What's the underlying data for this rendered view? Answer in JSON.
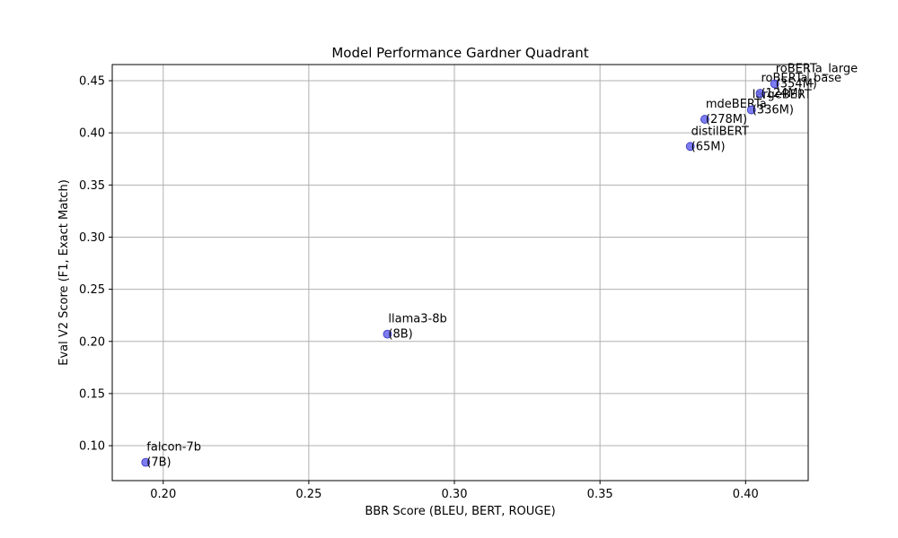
{
  "chart_data": {
    "type": "scatter",
    "title": "Model Performance Gardner Quadrant",
    "xlabel": "BBR Score (BLEU, BERT, ROUGE)",
    "ylabel": "Eval V2 Score (F1, Exact Match)",
    "xlim": [
      0.1825,
      0.4215
    ],
    "ylim": [
      0.0665,
      0.4655
    ],
    "xticks": [
      0.2,
      0.25,
      0.3,
      0.35,
      0.4
    ],
    "xtick_labels": [
      "0.20",
      "0.25",
      "0.30",
      "0.35",
      "0.40"
    ],
    "yticks": [
      0.1,
      0.15,
      0.2,
      0.25,
      0.3,
      0.35,
      0.4,
      0.45
    ],
    "ytick_labels": [
      "0.10",
      "0.15",
      "0.20",
      "0.25",
      "0.30",
      "0.35",
      "0.40",
      "0.45"
    ],
    "grid": true,
    "point_color": "#6666ee",
    "point_edge": "#3333bb",
    "points": [
      {
        "line1": "falcon-7b",
        "line2": "(7B)",
        "x": 0.194,
        "y": 0.084
      },
      {
        "line1": "llama3-8b",
        "line2": "(8B)",
        "x": 0.277,
        "y": 0.207
      },
      {
        "line1": "distilBERT",
        "line2": "(65M)",
        "x": 0.381,
        "y": 0.387
      },
      {
        "line1": "mdeBERTa",
        "line2": "(278M)",
        "x": 0.386,
        "y": 0.413
      },
      {
        "line1": "largeBERT",
        "line2": "(336M)",
        "x": 0.402,
        "y": 0.422
      },
      {
        "line1": "roBERTa_base",
        "line2": "(124M)",
        "x": 0.405,
        "y": 0.438
      },
      {
        "line1": "roBERTa_large",
        "line2": "(354M)",
        "x": 0.41,
        "y": 0.447
      }
    ]
  }
}
